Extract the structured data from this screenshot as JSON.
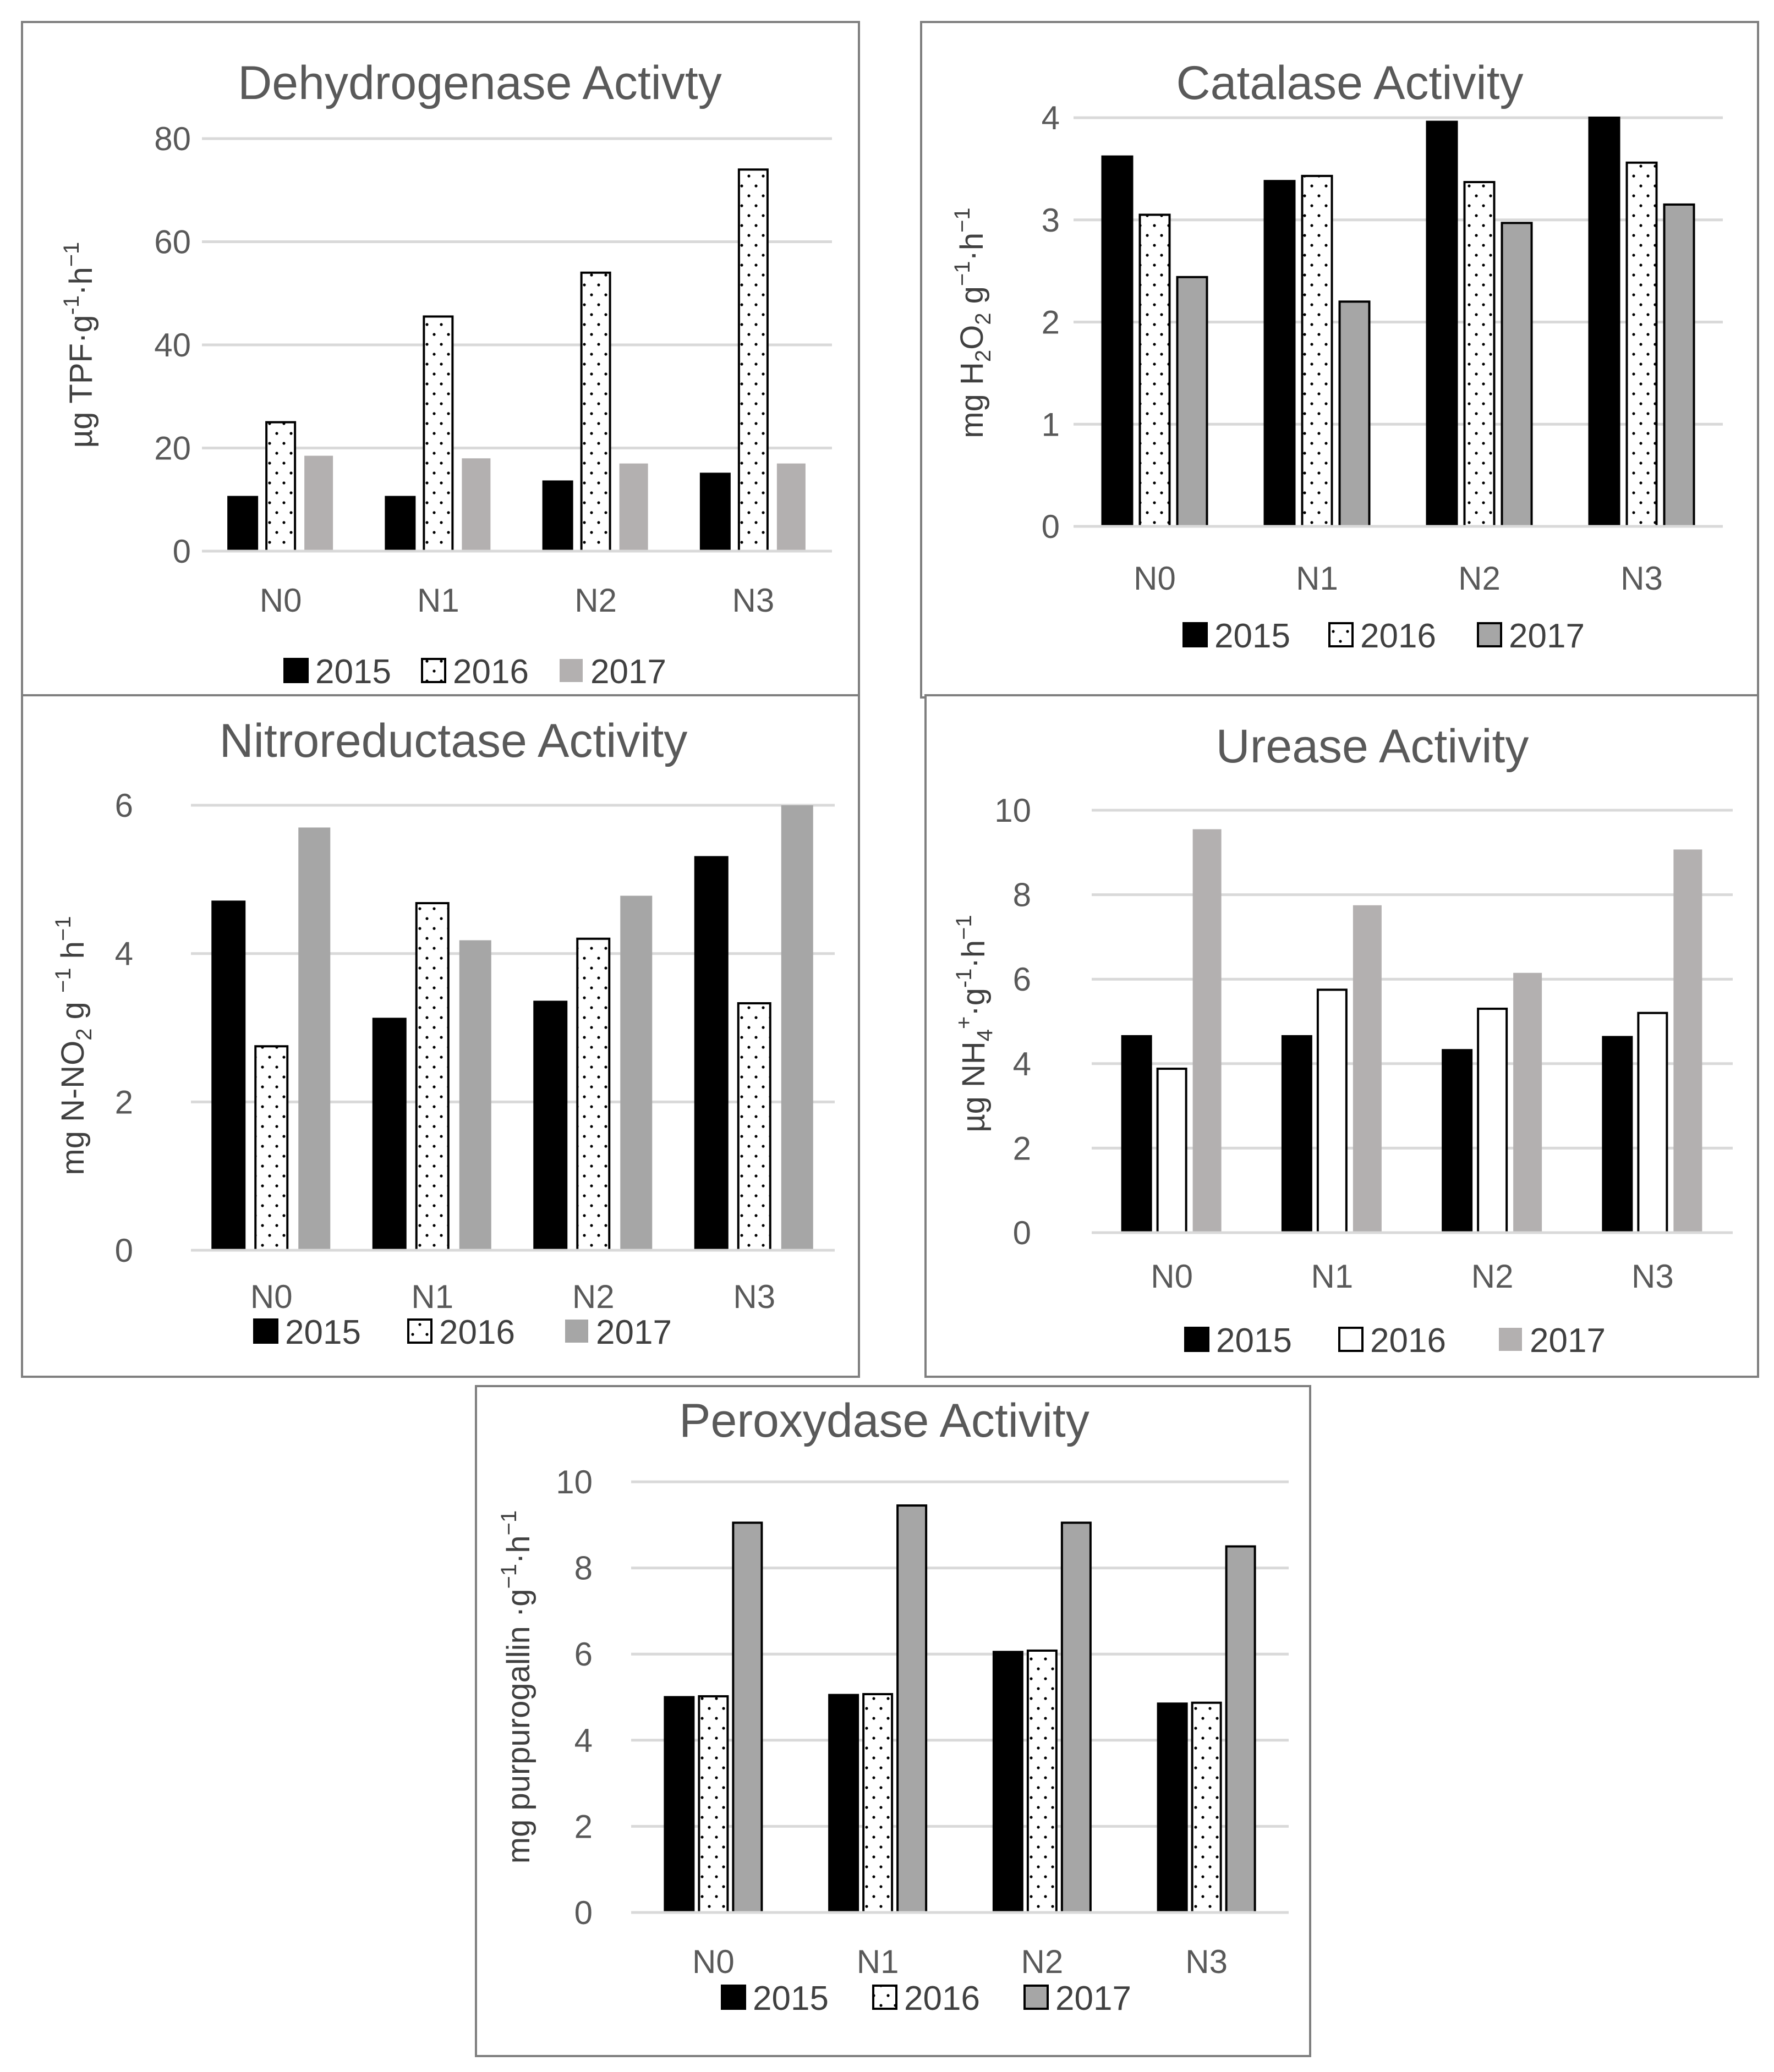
{
  "chart_data": [
    {
      "type": "bar",
      "title": "Dehydrogenase Activty",
      "ylabel": {
        "base": "µg TPF·g",
        "sup1": "-1",
        "mid": "·h",
        "sup2": "−1"
      },
      "ylim": [
        0,
        80
      ],
      "yticks": [
        0,
        20,
        40,
        60,
        80
      ],
      "categories": [
        "N0",
        "N1",
        "N2",
        "N3"
      ],
      "series": [
        {
          "name": "2015",
          "values": [
            10.5,
            10.5,
            13.5,
            15
          ]
        },
        {
          "name": "2016",
          "values": [
            25,
            45.5,
            54,
            74
          ]
        },
        {
          "name": "2017",
          "values": [
            18.5,
            18,
            17,
            17
          ]
        }
      ],
      "grid": true,
      "legend": "bottom",
      "styles": [
        "solid-black",
        "dotted-white",
        "light-gray"
      ]
    },
    {
      "type": "bar",
      "title": "Catalase Activity",
      "ylabel": {
        "base": "mg H",
        "sub": "2",
        "mid": "O",
        "sub2": "2",
        "rest": " g",
        "sup1": "−1",
        "mid2": "·h",
        "sup2": "−1"
      },
      "ylim": [
        0,
        4
      ],
      "yticks": [
        0,
        1,
        2,
        3,
        4
      ],
      "categories": [
        "N0",
        "N1",
        "N2",
        "N3"
      ],
      "series": [
        {
          "name": "2015",
          "values": [
            3.62,
            3.38,
            3.96,
            4.0
          ]
        },
        {
          "name": "2016",
          "values": [
            3.05,
            3.43,
            3.37,
            3.56
          ]
        },
        {
          "name": "2017",
          "values": [
            2.44,
            2.2,
            2.97,
            3.15
          ]
        }
      ],
      "grid": true,
      "legend": "bottom",
      "styles": [
        "solid-black",
        "dotted-white",
        "gray-outlined"
      ]
    },
    {
      "type": "bar",
      "title": "Nitroreductase Activity",
      "ylabel": {
        "base": "mg N-NO",
        "sub": "2",
        "rest": " g ",
        "sup1": "−1",
        "mid": " h",
        "sup2": "−1"
      },
      "ylim": [
        0,
        6
      ],
      "yticks": [
        0,
        2,
        4,
        6
      ],
      "categories": [
        "N0",
        "N1",
        "N2",
        "N3"
      ],
      "series": [
        {
          "name": "2015",
          "values": [
            4.7,
            3.12,
            3.35,
            5.3
          ]
        },
        {
          "name": "2016",
          "values": [
            2.75,
            4.68,
            4.2,
            3.33
          ]
        },
        {
          "name": "2017",
          "values": [
            5.7,
            4.18,
            4.78,
            6.0
          ]
        }
      ],
      "grid": true,
      "legend": "bottom",
      "styles": [
        "solid-black",
        "dotted-white",
        "mid-gray"
      ]
    },
    {
      "type": "bar",
      "title": "Urease Activity",
      "ylabel": {
        "base": "µg NH",
        "sub": "4",
        "sup0": "+",
        "rest": "·g",
        "sup1": "-1",
        "mid": "·h",
        "sup2": "−1"
      },
      "ylim": [
        0,
        10
      ],
      "yticks": [
        0,
        2,
        4,
        6,
        8,
        10
      ],
      "categories": [
        "N0",
        "N1",
        "N2",
        "N3"
      ],
      "series": [
        {
          "name": "2015",
          "values": [
            4.65,
            4.65,
            4.32,
            4.63
          ]
        },
        {
          "name": "2016",
          "values": [
            3.88,
            5.75,
            5.3,
            5.2
          ]
        },
        {
          "name": "2017",
          "values": [
            9.55,
            7.75,
            6.15,
            9.07
          ]
        }
      ],
      "grid": true,
      "legend": "bottom",
      "styles": [
        "solid-black",
        "plain-white",
        "light-gray"
      ]
    },
    {
      "type": "bar",
      "title": "Peroxydase Activity",
      "ylabel": {
        "base": "mg purpurogallin ·g",
        "sup1": "−1",
        "mid": "·h",
        "sup2": "−1"
      },
      "ylim": [
        0,
        10
      ],
      "yticks": [
        0,
        2,
        4,
        6,
        8,
        10
      ],
      "categories": [
        "N0",
        "N1",
        "N2",
        "N3"
      ],
      "series": [
        {
          "name": "2015",
          "values": [
            5.0,
            5.05,
            6.05,
            4.85
          ]
        },
        {
          "name": "2016",
          "values": [
            5.02,
            5.07,
            6.08,
            4.87
          ]
        },
        {
          "name": "2017",
          "values": [
            9.05,
            9.45,
            9.05,
            8.5
          ]
        }
      ],
      "grid": true,
      "legend": "bottom",
      "styles": [
        "solid-black",
        "dotted-white",
        "gray-outlined"
      ]
    }
  ]
}
